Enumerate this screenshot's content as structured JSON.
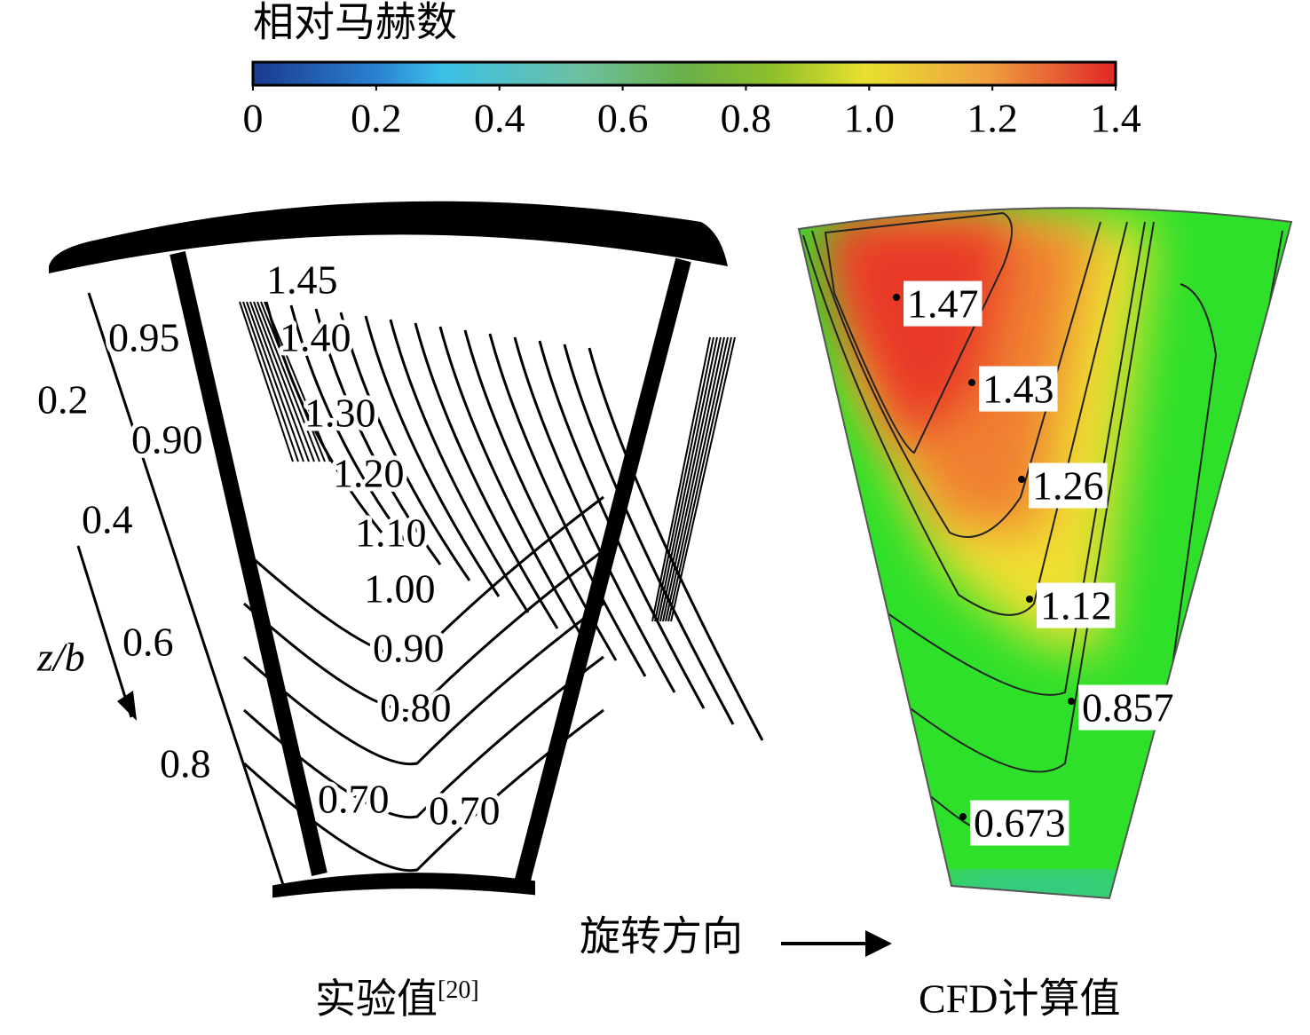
{
  "colorbar": {
    "title": "相对马赫数",
    "range": [
      0,
      1.4
    ],
    "ticks": [
      0,
      0.2,
      0.4,
      0.6,
      0.8,
      {
        "value": 1,
        "label": "1.0"
      },
      1.2,
      1.4
    ]
  },
  "left_panel": {
    "caption": "实验值",
    "caption_ref": "[20]",
    "contour_labels": [
      "1.45",
      "1.40",
      "1.30",
      "1.20",
      "1.10",
      "1.00",
      "0.90",
      "0.80",
      "0.70",
      "0.70",
      "0.95",
      "0.90"
    ],
    "span_labels": [
      "0.2",
      "0.4",
      "0.6",
      "0.8"
    ],
    "axis_label": "z/b"
  },
  "right_panel": {
    "caption": "CFD计算值",
    "contour_labels": [
      "1.47",
      "1.43",
      "1.26",
      "1.12",
      "0.857",
      "0.673"
    ]
  },
  "rotation_label": "旋转方向"
}
